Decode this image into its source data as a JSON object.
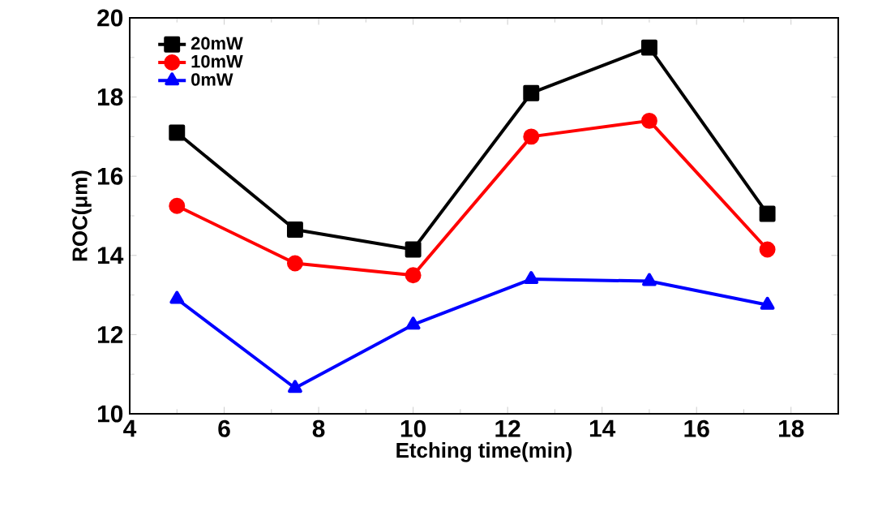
{
  "chart_data": {
    "type": "line",
    "xlabel": "Etching time(min)",
    "ylabel": "ROC(μm)",
    "x": [
      5,
      7.5,
      10,
      12.5,
      15,
      17.5
    ],
    "series": [
      {
        "name": "20mW",
        "color": "#000000",
        "marker": "square",
        "values": [
          17.1,
          14.65,
          14.15,
          18.1,
          19.25,
          15.05
        ]
      },
      {
        "name": "10mW",
        "color": "#ff0000",
        "marker": "circle",
        "values": [
          15.25,
          13.8,
          13.5,
          17.0,
          17.4,
          14.15
        ]
      },
      {
        "name": "0mW",
        "color": "#0000ff",
        "marker": "triangle",
        "values": [
          12.9,
          10.65,
          12.25,
          13.4,
          13.35,
          12.75
        ]
      }
    ],
    "xlim": [
      4,
      19
    ],
    "ylim": [
      10,
      20
    ],
    "xticks": [
      4,
      6,
      8,
      10,
      12,
      14,
      16,
      18
    ],
    "yticks": [
      10,
      12,
      14,
      16,
      18,
      20
    ],
    "legend": "top left",
    "grid": false,
    "line_style": "solid"
  }
}
